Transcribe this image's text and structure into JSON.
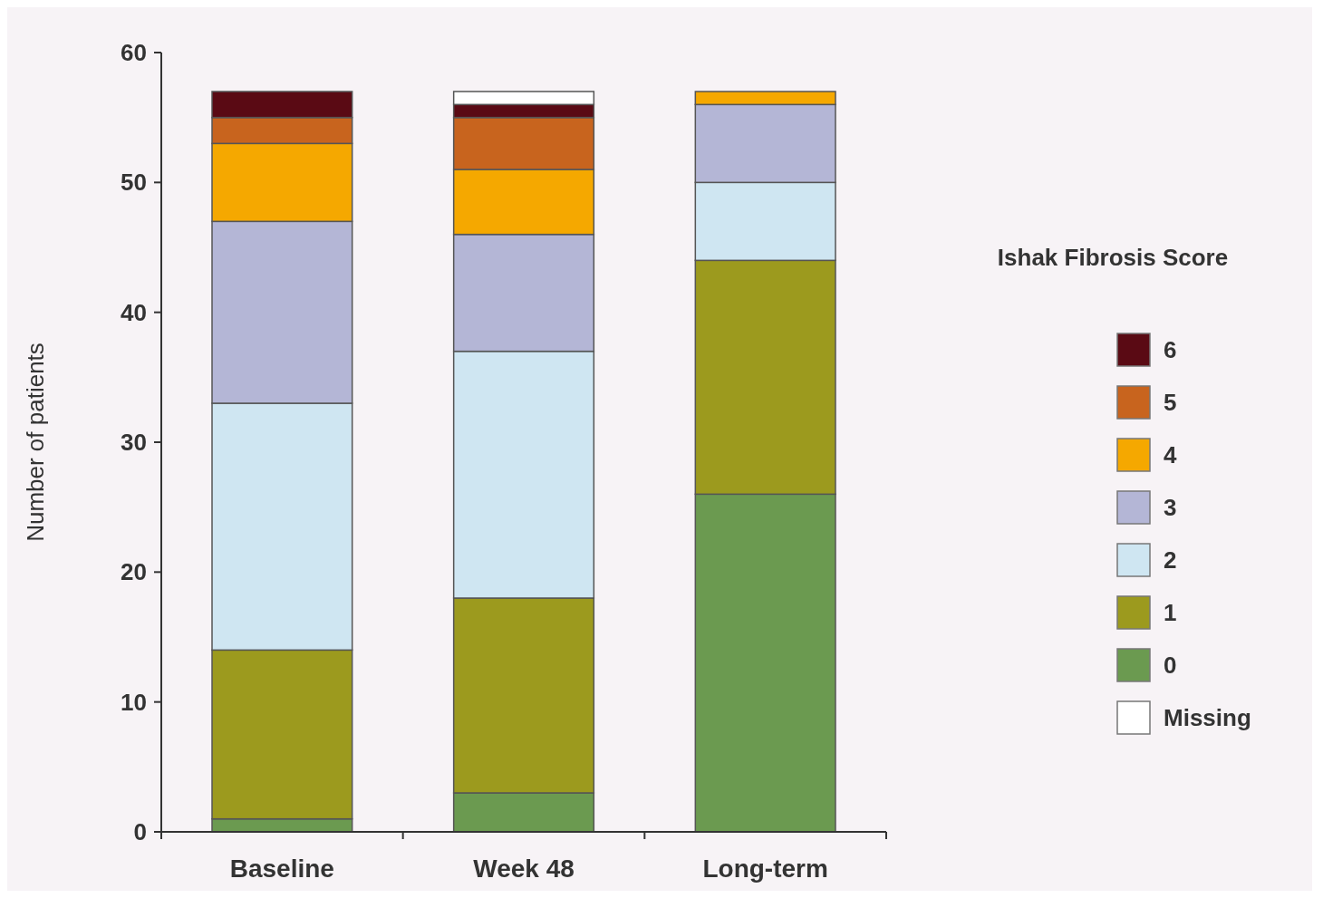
{
  "chart_data": {
    "type": "bar",
    "stacked": true,
    "ylabel": "Number of patients",
    "legend_title": "Ishak Fibrosis Score",
    "legend": "right",
    "grid": false,
    "categories": [
      "Baseline",
      "Week 48",
      "Long-term"
    ],
    "ylim": [
      0,
      60
    ],
    "yticks": [
      0,
      10,
      20,
      30,
      40,
      50,
      60
    ],
    "series": [
      {
        "name": "0",
        "color": "#6b9a50",
        "values": [
          1,
          3,
          26
        ]
      },
      {
        "name": "1",
        "color": "#9c9a1e",
        "values": [
          13,
          15,
          18
        ]
      },
      {
        "name": "2",
        "color": "#cfe6f2",
        "values": [
          19,
          19,
          6
        ]
      },
      {
        "name": "3",
        "color": "#b4b6d6",
        "values": [
          14,
          9,
          6
        ]
      },
      {
        "name": "4",
        "color": "#f5a800",
        "values": [
          6,
          5,
          1
        ]
      },
      {
        "name": "5",
        "color": "#c8641e",
        "values": [
          2,
          4,
          0
        ]
      },
      {
        "name": "6",
        "color": "#5a0a14",
        "values": [
          2,
          1,
          0
        ]
      },
      {
        "name": "Missing",
        "color": "#ffffff",
        "values": [
          0,
          1,
          0
        ]
      }
    ]
  }
}
